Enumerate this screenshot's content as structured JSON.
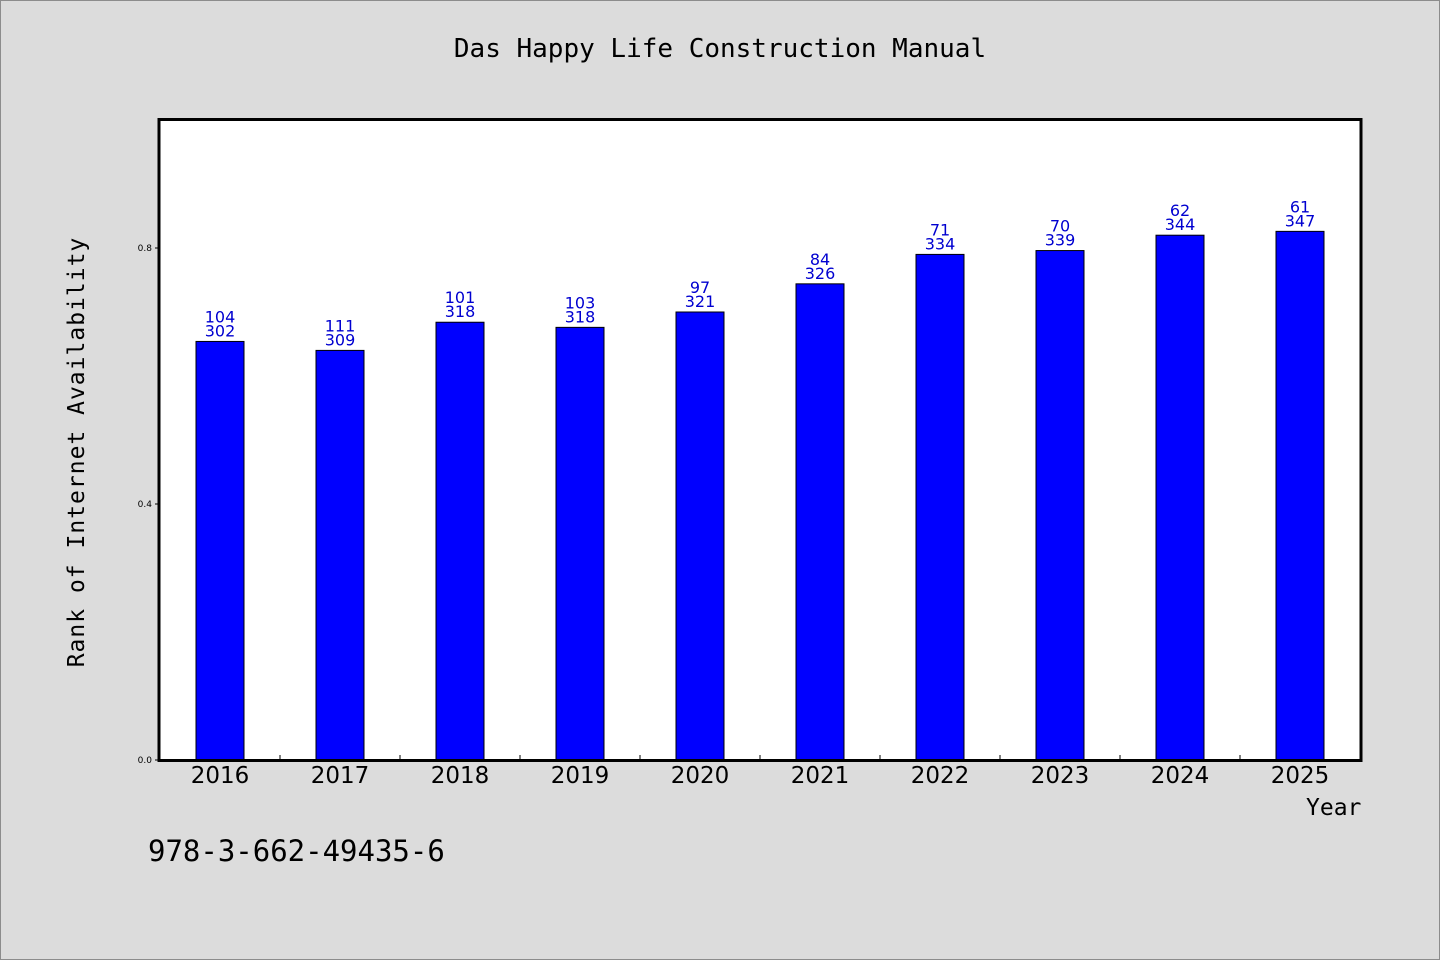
{
  "title": "Das Happy Life Construction Manual",
  "footer_text": "978-3-662-49435-6",
  "colors": {
    "background": "#dcdcdc",
    "plot_background": "#ffffff",
    "bar": "#0000ff",
    "label": "#0000d0"
  },
  "chart_data": {
    "type": "bar",
    "xlabel": "Year",
    "ylabel": "Rank of Internet Availability",
    "ylim": [
      0,
      1.0
    ],
    "yticks": [
      {
        "value": 0.0,
        "label": "0.0"
      },
      {
        "value": 0.4,
        "label": "0.4"
      },
      {
        "value": 0.8,
        "label": "0.8"
      }
    ],
    "grid": false,
    "categories": [
      "2016",
      "2017",
      "2018",
      "2019",
      "2020",
      "2021",
      "2022",
      "2023",
      "2024",
      "2025"
    ],
    "values": [
      0.654,
      0.64,
      0.684,
      0.676,
      0.7,
      0.744,
      0.79,
      0.796,
      0.82,
      0.826
    ],
    "rank_labels": [
      "104",
      "111",
      "101",
      "103",
      "97",
      "84",
      "71",
      "70",
      "62",
      "61"
    ],
    "count_labels": [
      "302",
      "309",
      "318",
      "318",
      "321",
      "326",
      "334",
      "339",
      "344",
      "347"
    ]
  }
}
